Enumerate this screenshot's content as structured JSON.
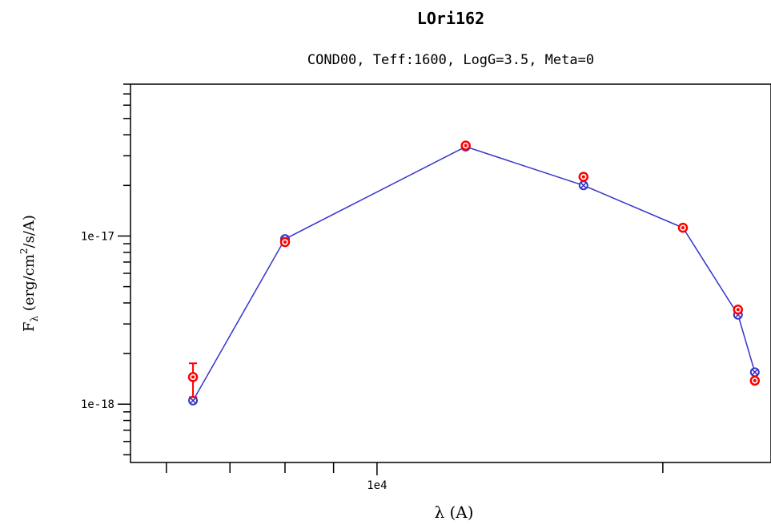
{
  "chart_data": {
    "type": "scatter",
    "title": "LOri162",
    "subtitle": "COND00, Teff:1600, LogG=3.5, Meta=0",
    "xlabel": "λ (A)",
    "ylabel_main": "F",
    "ylabel_sub": "λ",
    "ylabel_unit_pre": " (erg/cm",
    "ylabel_unit_sup": "2",
    "ylabel_unit_post": "/s/A)",
    "x_scale": "log",
    "y_scale": "log",
    "xlim": [
      5500,
      26000
    ],
    "ylim": [
      4.5e-19,
      8e-17
    ],
    "x_major_ticks": [
      {
        "value": 10000,
        "label": "1e4"
      }
    ],
    "y_major_ticks": [
      {
        "value": 1e-17,
        "label": "1e-17"
      },
      {
        "value": 1e-18,
        "label": "1e-18"
      }
    ],
    "grid": false,
    "colors": {
      "model": "#3333cc",
      "observed": "#ff0000"
    },
    "model": {
      "x": [
        6400,
        8000,
        12400,
        16500,
        21000,
        24000,
        25000
      ],
      "y": [
        1.05e-18,
        9.6e-18,
        3.4e-17,
        2e-17,
        1.12e-17,
        3.4e-18,
        1.55e-18
      ]
    },
    "observed": {
      "x": [
        6400,
        8000,
        12400,
        16500,
        21000,
        24000,
        25000
      ],
      "y": [
        1.45e-18,
        9.2e-18,
        3.45e-17,
        2.25e-17,
        1.12e-17,
        3.65e-18,
        1.38e-18
      ],
      "yerr_low": [
        3.5e-19,
        0,
        0,
        0,
        0,
        0,
        0
      ],
      "yerr_high": [
        3e-19,
        0,
        0,
        0,
        0,
        0,
        0
      ]
    }
  }
}
